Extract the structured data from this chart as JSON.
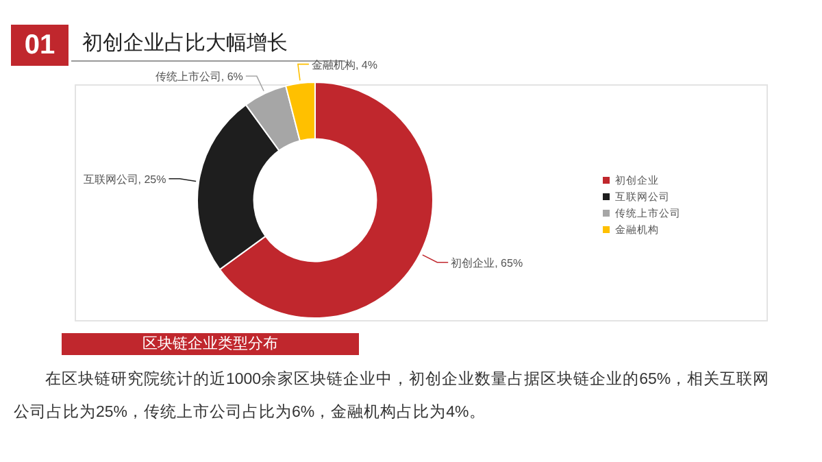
{
  "chart_data": {
    "type": "donut",
    "title": "初创企业占比大幅增长",
    "subtitle": "区块链企业类型分布",
    "categories": [
      "初创企业",
      "互联网公司",
      "传统上市公司",
      "金融机构"
    ],
    "values": [
      65,
      25,
      6,
      4
    ],
    "colors": [
      "#c0272d",
      "#1e1e1e",
      "#a6a6a6",
      "#ffc000"
    ],
    "value_labels": [
      "初创企业, 65%",
      "互联网公司, 25%",
      "传统上市公司, 6%",
      "金融机构, 4%"
    ],
    "legend": "right",
    "annotations": [
      "01",
      "在区块链研究院统计的近1000余家区块链企业中，初创企业数量占据区块链企业的65%，相关互联网公司占比为25%，传统上市公司占比为6%，金融机构占比为4%。"
    ]
  }
}
